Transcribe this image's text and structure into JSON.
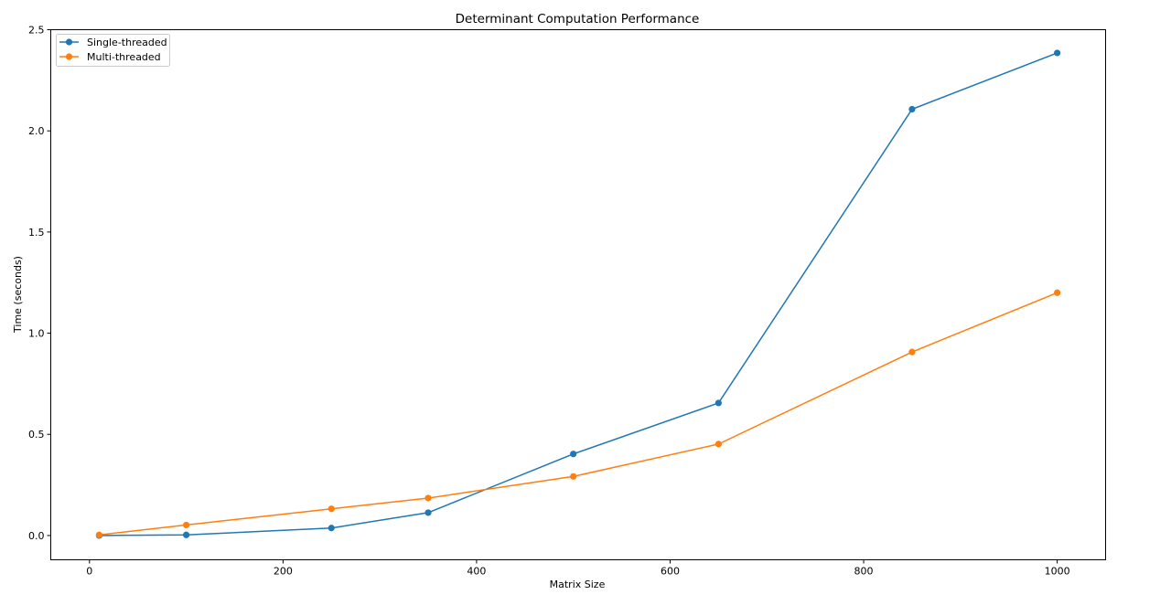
{
  "chart_data": {
    "type": "line",
    "title": "Determinant Computation Performance",
    "xlabel": "Matrix Size",
    "ylabel": "Time (seconds)",
    "xlim": [
      -40,
      1050
    ],
    "ylim": [
      -0.12,
      2.5
    ],
    "xticks": [
      0,
      200,
      400,
      600,
      800,
      1000
    ],
    "xtick_labels": [
      "0",
      "200",
      "400",
      "600",
      "800",
      "1000"
    ],
    "yticks": [
      0.0,
      0.5,
      1.0,
      1.5,
      2.0,
      2.5
    ],
    "ytick_labels": [
      "0.0",
      "0.5",
      "1.0",
      "1.5",
      "2.0",
      "2.5"
    ],
    "grid": false,
    "legend_position": "top-left",
    "x": [
      10,
      100,
      250,
      350,
      500,
      650,
      850,
      1000
    ],
    "series": [
      {
        "name": "Single-threaded",
        "color": "#1f77b4",
        "marker": "circle",
        "values": [
          0.0,
          0.003,
          0.037,
          0.113,
          0.403,
          0.655,
          2.107,
          2.385
        ]
      },
      {
        "name": "Multi-threaded",
        "color": "#ff7f0e",
        "marker": "circle",
        "values": [
          0.003,
          0.052,
          0.132,
          0.185,
          0.292,
          0.452,
          0.907,
          1.2
        ]
      }
    ]
  }
}
